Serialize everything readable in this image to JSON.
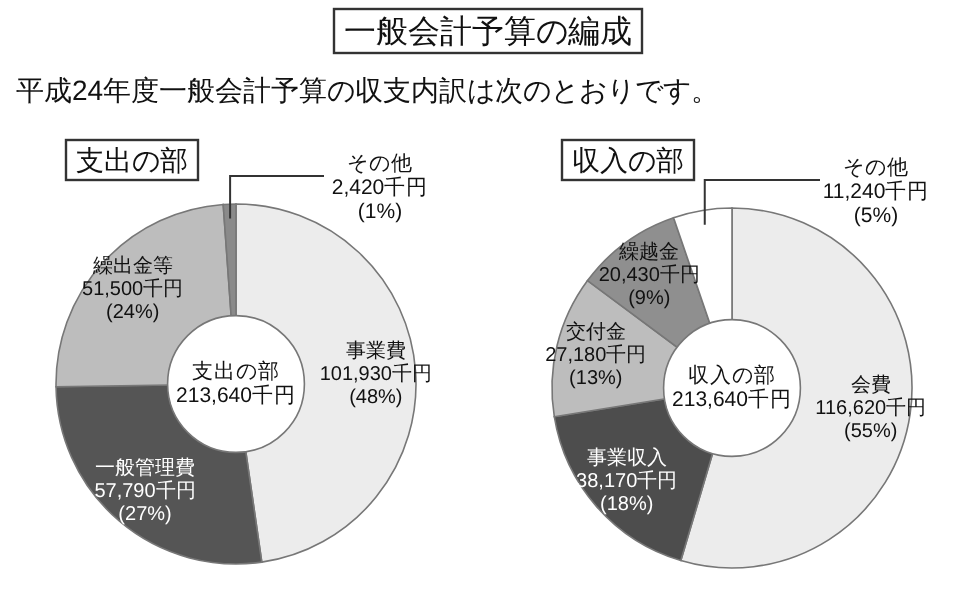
{
  "chart_data": [
    {
      "type": "other",
      "title": "一般会計予算の編成",
      "subtitle": "平成24年度一般会計予算の収支内訳は次のとおりです。"
    },
    {
      "type": "donut",
      "title": "支出の部",
      "categories": [
        "事業費",
        "一般管理費",
        "繰出金等",
        "その他"
      ],
      "values": [
        101930,
        57790,
        51500,
        2420
      ],
      "colors": [
        "#ececec",
        "#555555",
        "#bdbdbd",
        "#8a8a8a"
      ],
      "value_labels": [
        "101,930千円\n(48%)",
        "57,790千円\n(27%)",
        "51,500千円\n(24%)",
        "2,420千円\n(1%)"
      ],
      "annotations": [
        "支出の部\n213,640千円"
      ]
    },
    {
      "type": "donut",
      "title": "収入の部",
      "categories": [
        "会費",
        "事業収入",
        "交付金",
        "繰越金",
        "その他"
      ],
      "values": [
        116620,
        38170,
        27180,
        20430,
        11240
      ],
      "colors": [
        "#ececec",
        "#4d4d4d",
        "#bdbdbd",
        "#8f8f8f",
        "#ffffff"
      ],
      "value_labels": [
        "116,620千円\n(55%)",
        "38,170千円\n(18%)",
        "27,180千円\n(13%)",
        "20,430千円\n(9%)",
        "11,240千円\n(5%)"
      ],
      "annotations": [
        "収入の部\n213,640千円"
      ]
    }
  ]
}
